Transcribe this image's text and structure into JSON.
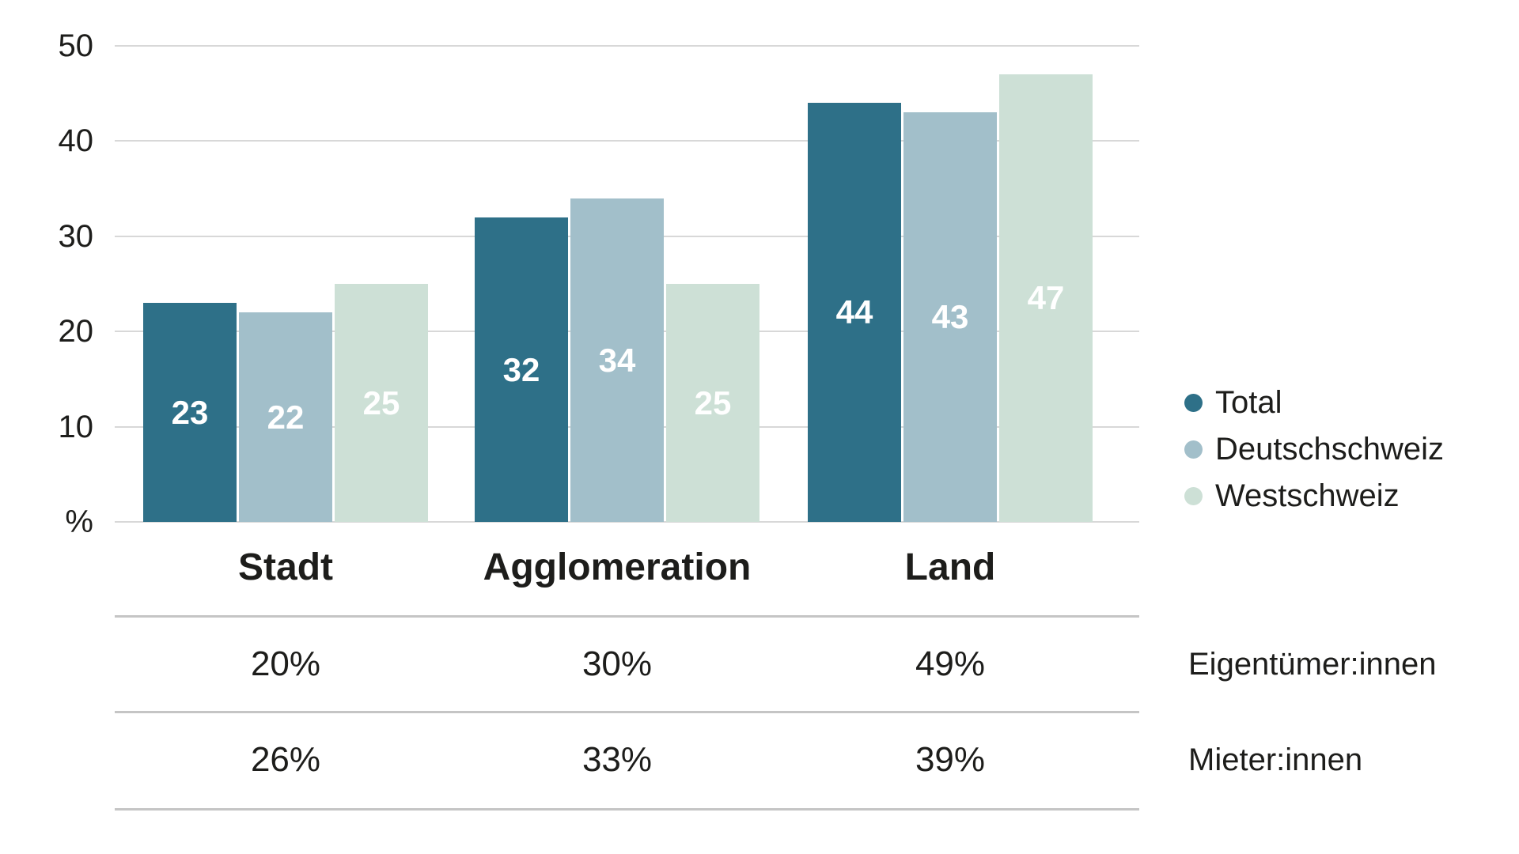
{
  "colors": {
    "background": "#ffffff",
    "text": "#1d1d1b",
    "bar_label_text": "#ffffff",
    "gridline": "#d8d8d8",
    "table_line": "#c5c5c5",
    "series_total": "#2e7088",
    "series_deutschschweiz": "#a2bfca",
    "series_westschweiz": "#cde0d6"
  },
  "chart_data": {
    "type": "bar",
    "categories": [
      "Stadt",
      "Agglomeration",
      "Land"
    ],
    "series": [
      {
        "name": "Total",
        "values": [
          23,
          32,
          44
        ],
        "color": "#2e7088",
        "label_color": "#ffffff"
      },
      {
        "name": "Deutschschweiz",
        "values": [
          22,
          34,
          43
        ],
        "color": "#a2bfca",
        "label_color": "#ffffff"
      },
      {
        "name": "Westschweiz",
        "values": [
          25,
          25,
          47
        ],
        "color": "#cde0d6",
        "label_color": "#ffffff"
      }
    ],
    "title": "",
    "xlabel": "",
    "ylabel": "%",
    "axis_unit_label": "%",
    "yticks": [
      50,
      40,
      30,
      20,
      10
    ],
    "ylim": [
      0,
      50
    ],
    "grid": true,
    "legend_position": "right",
    "bar_value_labels": [
      [
        "23",
        "22",
        "25"
      ],
      [
        "32",
        "34",
        "25"
      ],
      [
        "44",
        "43",
        "47"
      ]
    ]
  },
  "table": {
    "rows": [
      {
        "label": "Eigentümer:innen",
        "values": [
          "20%",
          "30%",
          "49%"
        ]
      },
      {
        "label": "Mieter:innen",
        "values": [
          "26%",
          "33%",
          "39%"
        ]
      }
    ]
  }
}
